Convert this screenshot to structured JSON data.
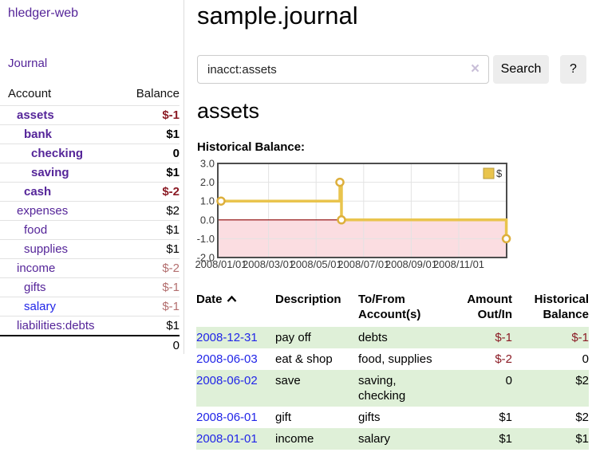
{
  "app": {
    "brand": "hledger-web"
  },
  "sidebar": {
    "nav_journal": "Journal",
    "accounts_table": {
      "col_account": "Account",
      "col_balance": "Balance",
      "rows": [
        {
          "name": "assets",
          "indent": 1,
          "bold": true,
          "balance": "$-1",
          "balance_style": "neg-strong"
        },
        {
          "name": "bank",
          "indent": 2,
          "bold": true,
          "balance": "$1",
          "balance_style": "pos"
        },
        {
          "name": "checking",
          "indent": 3,
          "bold": true,
          "balance": "0",
          "balance_style": "pos"
        },
        {
          "name": "saving",
          "indent": 3,
          "bold": true,
          "balance": "$1",
          "balance_style": "pos"
        },
        {
          "name": "cash",
          "indent": 2,
          "bold": true,
          "balance": "$-2",
          "balance_style": "neg-strong"
        },
        {
          "name": "expenses",
          "indent": 1,
          "bold": false,
          "balance": "$2",
          "balance_style": "pos"
        },
        {
          "name": "food",
          "indent": 2,
          "bold": false,
          "balance": "$1",
          "balance_style": "pos"
        },
        {
          "name": "supplies",
          "indent": 2,
          "bold": false,
          "balance": "$1",
          "balance_style": "pos"
        },
        {
          "name": "income",
          "indent": 1,
          "bold": false,
          "balance": "$-2",
          "balance_style": "neg-muted"
        },
        {
          "name": "gifts",
          "indent": 2,
          "bold": false,
          "balance": "$-1",
          "balance_style": "neg-muted"
        },
        {
          "name": "salary",
          "indent": 2,
          "bold": false,
          "balance": "$-1",
          "balance_style": "neg-muted",
          "link_style": "unvisited"
        },
        {
          "name": "liabilities:debts",
          "indent": 1,
          "bold": false,
          "balance": "$1",
          "balance_style": "pos"
        }
      ],
      "total": "0"
    }
  },
  "header": {
    "title": "sample.journal"
  },
  "search": {
    "value": "inacct:assets",
    "clear_label": "×",
    "button_label": "Search",
    "help_label": "?"
  },
  "account_page": {
    "heading": "assets",
    "chart_label": "Historical Balance:"
  },
  "chart_data": {
    "type": "line",
    "style": "step-after",
    "title": "Historical Balance",
    "legend": [
      {
        "label": "$",
        "color": "#e9c44d"
      }
    ],
    "x_ticks": [
      "2008/01/01",
      "2008/03/01",
      "2008/05/01",
      "2008/07/01",
      "2008/09/01",
      "2008/11/01"
    ],
    "y_tick_labels": [
      "3.0",
      "2.0",
      "1.0",
      "0.0",
      "-1.0",
      "-2.0"
    ],
    "ylim": [
      -2.0,
      3.0
    ],
    "points": [
      {
        "date": "2008/01/01",
        "value": 1.0
      },
      {
        "date": "2008/06/01",
        "value": 2.0
      },
      {
        "date": "2008/06/03",
        "value": 0.0
      },
      {
        "date": "2008/12/31",
        "value": -1.0
      }
    ],
    "line_color": "#e9c44d",
    "marker_stroke": "#ddaf3c",
    "negative_region_color": "#fbdde1",
    "zero_line_color": "#8b0000",
    "grid_color": "#e3e3e3",
    "border_color": "#4d4d4d"
  },
  "transactions": {
    "columns": {
      "date": "Date",
      "description": "Description",
      "accounts_line1": "To/From",
      "accounts_line2": "Account(s)",
      "amount_line1": "Amount",
      "amount_line2": "Out/In",
      "balance_line1": "Historical",
      "balance_line2": "Balance"
    },
    "rows": [
      {
        "date": "2008-12-31",
        "description": "pay off",
        "accounts": "debts",
        "amount": "$-1",
        "balance": "$-1"
      },
      {
        "date": "2008-06-03",
        "description": "eat & shop",
        "accounts": "food, supplies",
        "amount": "$-2",
        "balance": "0"
      },
      {
        "date": "2008-06-02",
        "description": "save",
        "accounts": "saving, checking",
        "amount": "0",
        "balance": "$2"
      },
      {
        "date": "2008-06-01",
        "description": "gift",
        "accounts": "gifts",
        "amount": "$1",
        "balance": "$2"
      },
      {
        "date": "2008-01-01",
        "description": "income",
        "accounts": "salary",
        "amount": "$1",
        "balance": "$1"
      }
    ]
  },
  "colors": {
    "link_purple": "#552599",
    "link_blue": "#2125e8",
    "negative_strong": "#8b1b25",
    "negative_muted": "#b36e6e",
    "row_stripe_green": "#dff0d8",
    "button_bg": "#ededed"
  }
}
